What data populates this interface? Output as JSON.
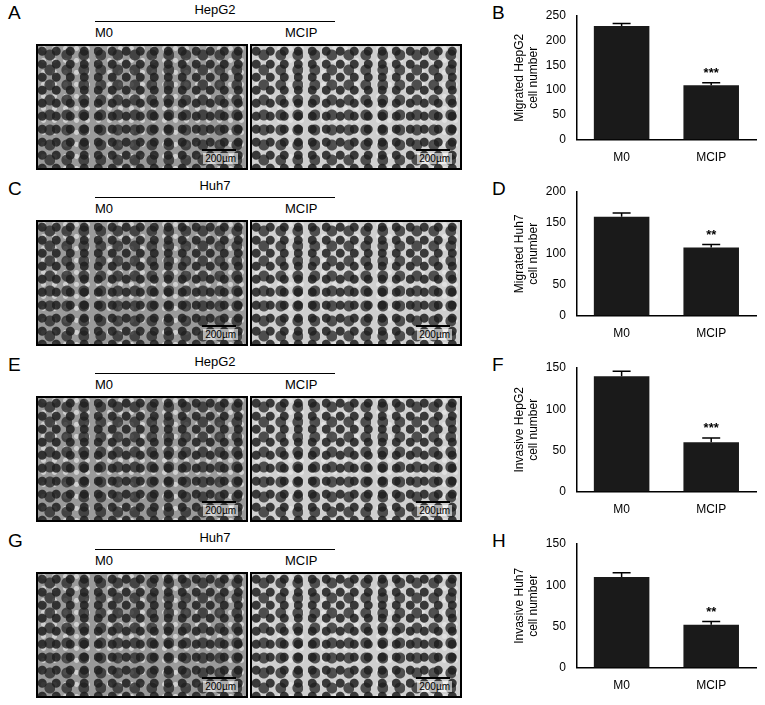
{
  "image_panels": [
    {
      "panel_label": "A",
      "cell_line": "HepG2",
      "groups": [
        "M0",
        "MCIP"
      ],
      "scale_bar": "200µm"
    },
    {
      "panel_label": "C",
      "cell_line": "Huh7",
      "groups": [
        "M0",
        "MCIP"
      ],
      "scale_bar": "200µm"
    },
    {
      "panel_label": "E",
      "cell_line": "HepG2",
      "groups": [
        "M0",
        "MCIP"
      ],
      "scale_bar": "200µm"
    },
    {
      "panel_label": "G",
      "cell_line": "Huh7",
      "groups": [
        "M0",
        "MCIP"
      ],
      "scale_bar": "200µm"
    }
  ],
  "chart_data": [
    {
      "type": "bar",
      "panel_label": "B",
      "y_label": "Migrated HepG2\ncell number",
      "categories": [
        "M0",
        "MCIP"
      ],
      "values": [
        230,
        110
      ],
      "errors": [
        5,
        5
      ],
      "color": "#1a1a1a",
      "ylim": [
        0,
        250
      ],
      "yticks": [
        0,
        50,
        100,
        150,
        200,
        250
      ],
      "grid": false,
      "annotations": [
        {
          "category": "MCIP",
          "text": "***"
        }
      ]
    },
    {
      "type": "bar",
      "panel_label": "D",
      "y_label": "Migrated Huh7\ncell number",
      "categories": [
        "M0",
        "MCIP"
      ],
      "values": [
        160,
        110
      ],
      "errors": [
        6,
        5
      ],
      "color": "#1a1a1a",
      "ylim": [
        0,
        200
      ],
      "yticks": [
        0,
        50,
        100,
        150,
        200
      ],
      "grid": false,
      "annotations": [
        {
          "category": "MCIP",
          "text": "**"
        }
      ]
    },
    {
      "type": "bar",
      "panel_label": "F",
      "y_label": "Invasive HepG2\ncell number",
      "categories": [
        "M0",
        "MCIP"
      ],
      "values": [
        140,
        60
      ],
      "errors": [
        6,
        5
      ],
      "color": "#1a1a1a",
      "ylim": [
        0,
        150
      ],
      "yticks": [
        0,
        50,
        100,
        150
      ],
      "grid": false,
      "annotations": [
        {
          "category": "MCIP",
          "text": "***"
        }
      ]
    },
    {
      "type": "bar",
      "panel_label": "H",
      "y_label": "Invasive Huh7\ncell number",
      "categories": [
        "M0",
        "MCIP"
      ],
      "values": [
        110,
        52
      ],
      "errors": [
        5,
        4
      ],
      "color": "#1a1a1a",
      "ylim": [
        0,
        150
      ],
      "yticks": [
        0,
        50,
        100,
        150
      ],
      "grid": false,
      "annotations": [
        {
          "category": "MCIP",
          "text": "**"
        }
      ]
    }
  ]
}
